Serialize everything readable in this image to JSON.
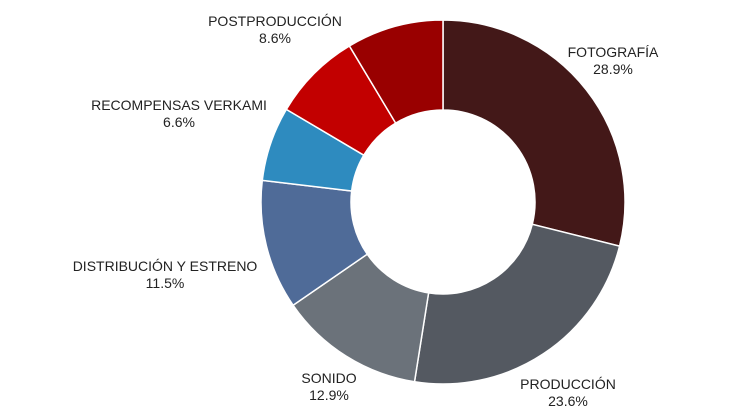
{
  "chart_data": {
    "type": "pie",
    "donut": true,
    "title": "",
    "legend": "none",
    "slices": [
      {
        "label": "FOTOGRAFÍA",
        "value": 28.9,
        "value_label": "28.9%",
        "color": "#431818"
      },
      {
        "label": "PRODUCCIÓN",
        "value": 23.6,
        "value_label": "23.6%",
        "color": "#545961"
      },
      {
        "label": "SONIDO",
        "value": 12.9,
        "value_label": "12.9%",
        "color": "#6b727a"
      },
      {
        "label": "DISTRIBUCIÓN Y ESTRENO",
        "value": 11.5,
        "value_label": "11.5%",
        "color": "#4f6b98"
      },
      {
        "label": "RECOMPENSAS VERKAMI",
        "value": 6.6,
        "value_label": "6.6%",
        "color": "#2e8bbf"
      },
      {
        "label": "",
        "value": 7.9,
        "value_label": "",
        "color": "#c20000"
      },
      {
        "label": "POSTPRODUCCIÓN",
        "value": 8.6,
        "value_label": "8.6%",
        "color": "#990000"
      }
    ]
  }
}
